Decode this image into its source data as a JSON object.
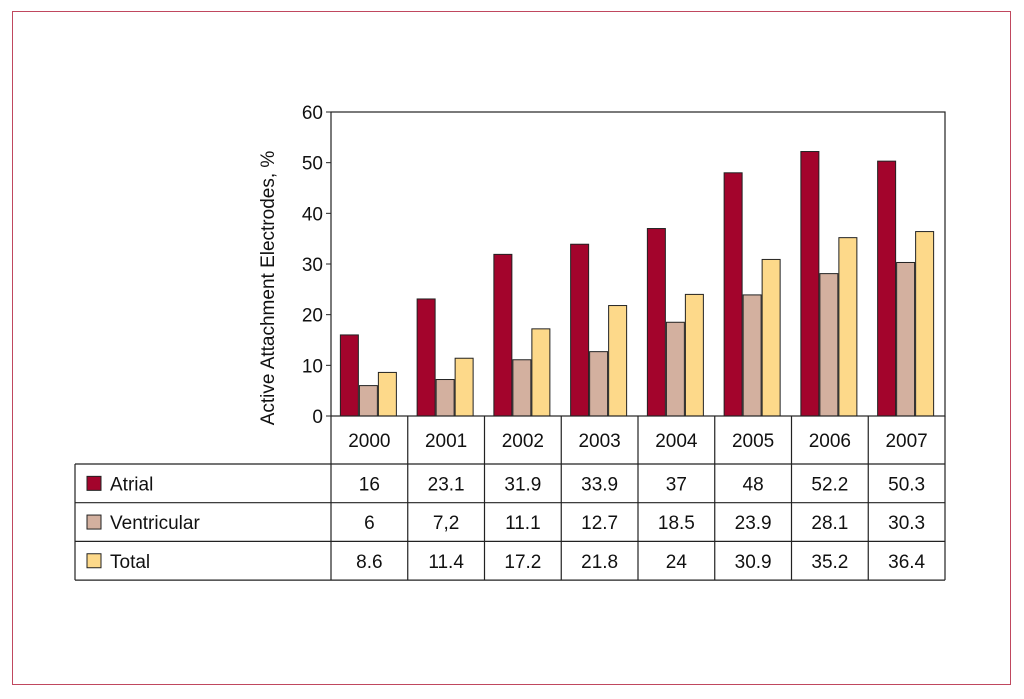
{
  "chart_data": {
    "type": "bar",
    "ylabel": "Active Attachment Electrodes, %",
    "ylim": [
      0,
      60
    ],
    "yticks": [
      "0",
      "10",
      "20",
      "30",
      "40",
      "50",
      "60"
    ],
    "categories": [
      "2000",
      "2001",
      "2002",
      "2003",
      "2004",
      "2005",
      "2006",
      "2007"
    ],
    "legend": "table-below",
    "grid": false,
    "series": [
      {
        "name": "Atrial",
        "color": "#a3042c",
        "values": [
          16,
          23.1,
          31.9,
          33.9,
          37,
          48,
          52.2,
          50.3
        ],
        "labels": [
          "16",
          "23.1",
          "31.9",
          "33.9",
          "37",
          "48",
          "52.2",
          "50.3"
        ]
      },
      {
        "name": "Ventricular",
        "color": "#d3b09f",
        "values": [
          6,
          7.2,
          11.1,
          12.7,
          18.5,
          23.9,
          28.1,
          30.3
        ],
        "labels": [
          "6",
          "7,2",
          "11.1",
          "12.7",
          "18.5",
          "23.9",
          "28.1",
          "30.3"
        ]
      },
      {
        "name": "Total",
        "color": "#fdd98a",
        "values": [
          8.6,
          11.4,
          17.2,
          21.8,
          24,
          30.9,
          35.2,
          36.4
        ],
        "labels": [
          "8.6",
          "11.4",
          "17.2",
          "21.8",
          "24",
          "30.9",
          "35.2",
          "36.4"
        ]
      }
    ]
  }
}
